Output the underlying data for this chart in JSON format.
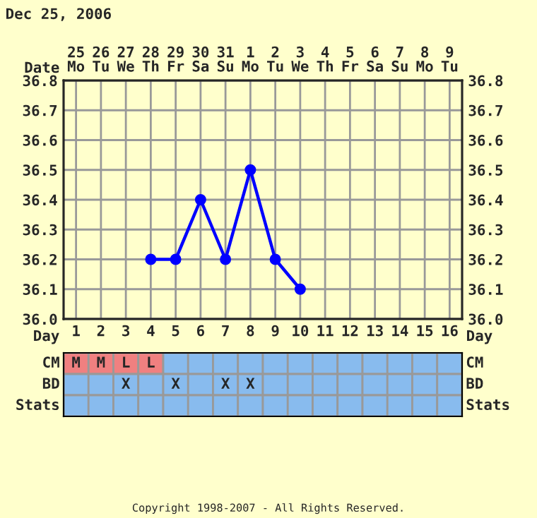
{
  "chart_data": [
    {
      "type": "line",
      "title": "Dec 25, 2006",
      "xlabel": "Day",
      "x2label": "Date",
      "categories": [
        "1",
        "2",
        "3",
        "4",
        "5",
        "6",
        "7",
        "8",
        "9",
        "10",
        "11",
        "12",
        "13",
        "14",
        "15",
        "16"
      ],
      "x2lim": [
        "2006-12-24T12:00",
        "2007-01-09T12:00"
      ],
      "x2ticks": [
        {
          "value": "2006-12-25",
          "label": "25\nMo"
        },
        {
          "value": "2006-12-26",
          "label": "26\nTu"
        },
        {
          "value": "2006-12-27",
          "label": "27\nWe"
        },
        {
          "value": "2006-12-28",
          "label": "28\nTh"
        },
        {
          "value": "2006-12-29",
          "label": "29\nFr"
        },
        {
          "value": "2006-12-30",
          "label": "30\nSa"
        },
        {
          "value": "2006-12-31",
          "label": "31\nSu"
        },
        {
          "value": "2007-01-01",
          "label": "1\nMo"
        },
        {
          "value": "2007-01-02",
          "label": "2\nTu"
        },
        {
          "value": "2007-01-03",
          "label": "3\nWe"
        },
        {
          "value": "2007-01-04",
          "label": "4\nTh"
        },
        {
          "value": "2007-01-05",
          "label": "5\nFr"
        },
        {
          "value": "2007-01-06",
          "label": "6\nSa"
        },
        {
          "value": "2007-01-07",
          "label": "7\nSu"
        },
        {
          "value": "2007-01-08",
          "label": "8\nMo"
        },
        {
          "value": "2007-01-09",
          "label": "9\nTu"
        }
      ],
      "ylim": [
        36.0,
        36.8
      ],
      "yticks": [
        {
          "value": 36.0,
          "label": "36.0"
        },
        36.1,
        36.2,
        36.3,
        36.4,
        36.5,
        36.6,
        36.7,
        36.8
      ],
      "y2lim": [
        36.0,
        36.8
      ],
      "y2ticks": [
        {
          "value": 36.0,
          "label": "36.0"
        },
        36.1,
        36.2,
        36.3,
        36.4,
        36.5,
        36.6,
        36.7,
        36.8
      ],
      "series": [
        {
          "color": "#0000ff",
          "values": [
            null,
            null,
            null,
            36.2,
            36.2,
            36.4,
            36.2,
            36.5,
            36.2,
            36.1,
            null,
            null,
            null,
            null,
            null,
            null
          ]
        }
      ],
      "marker": "circle",
      "line_style": "solid",
      "grid": true,
      "annotations": [
        "Copyright 1998-2007 - All Rights Reserved."
      ]
    },
    {
      "type": "other",
      "categories": [
        null,
        null,
        null,
        null,
        null,
        null,
        null,
        null,
        null,
        null,
        null,
        null,
        null,
        null,
        null,
        null
      ],
      "y_categories": [
        "CM",
        "BD",
        "Stats"
      ],
      "y2_categories": [
        "CM",
        "BD",
        "Stats"
      ],
      "cell_labels": [
        [
          "M",
          "M",
          "L",
          "L",
          null,
          null,
          null,
          null,
          null,
          null,
          null,
          null,
          null,
          null,
          null,
          null
        ],
        [
          null,
          null,
          "X",
          null,
          "X",
          null,
          "X",
          "X",
          null,
          null,
          null,
          null,
          null,
          null,
          null,
          null
        ],
        [
          null,
          null,
          null,
          null,
          null,
          null,
          null,
          null,
          null,
          null,
          null,
          null,
          null,
          null,
          null,
          null
        ]
      ],
      "colors": [
        [
          "#f08080",
          "#f08080",
          "#f08080",
          "#f08080",
          "#88bbee",
          "#88bbee",
          "#88bbee",
          "#88bbee",
          "#88bbee",
          "#88bbee",
          "#88bbee",
          "#88bbee",
          "#88bbee",
          "#88bbee",
          "#88bbee",
          "#88bbee"
        ],
        [
          "#88bbee",
          "#88bbee",
          "#88bbee",
          "#88bbee",
          "#88bbee",
          "#88bbee",
          "#88bbee",
          "#88bbee",
          "#88bbee",
          "#88bbee",
          "#88bbee",
          "#88bbee",
          "#88bbee",
          "#88bbee",
          "#88bbee",
          "#88bbee"
        ],
        [
          "#88bbee",
          "#88bbee",
          "#88bbee",
          "#88bbee",
          "#88bbee",
          "#88bbee",
          "#88bbee",
          "#88bbee",
          "#88bbee",
          "#88bbee",
          "#88bbee",
          "#88bbee",
          "#88bbee",
          "#88bbee",
          "#88bbee",
          "#88bbee"
        ]
      ]
    }
  ]
}
